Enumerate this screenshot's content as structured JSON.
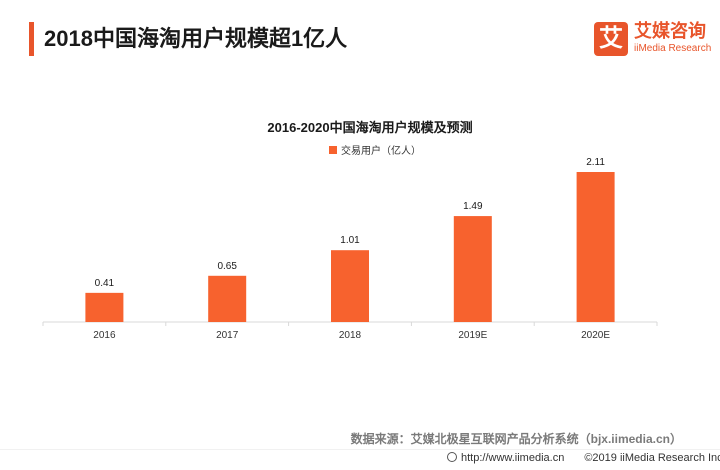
{
  "page_title": "2018中国海淘用户规模超1亿人",
  "brand": {
    "mark": "艾",
    "name_cn": "艾媒咨询",
    "name_en": "iiMedia Research",
    "color": "#e8552b"
  },
  "chart_data": {
    "type": "bar",
    "title": "2016-2020中国海淘用户规模及预测",
    "categories": [
      "2016",
      "2017",
      "2018",
      "2019E",
      "2020E"
    ],
    "series": [
      {
        "name": "交易用户（亿人）",
        "values": [
          0.41,
          0.65,
          1.01,
          1.49,
          2.11
        ],
        "color": "#f7622e"
      }
    ],
    "value_labels": [
      "0.41",
      "0.65",
      "1.01",
      "1.49",
      "2.11"
    ],
    "ylim": [
      0,
      2.5
    ],
    "grid": false,
    "legend": "top-left"
  },
  "source_text": "数据来源：艾媒北极星互联网产品分析系统（bjx.iimedia.cn）",
  "footer": {
    "url": "http://www.iimedia.cn",
    "copyright": "©2019  iiMedia Research Inc"
  }
}
